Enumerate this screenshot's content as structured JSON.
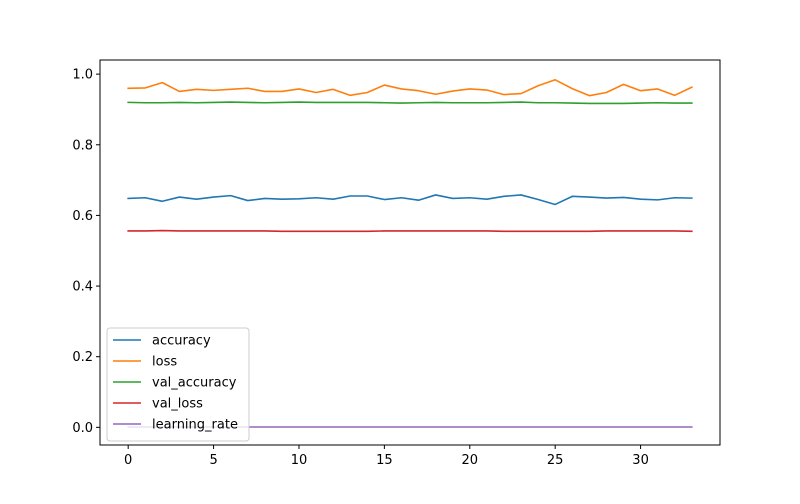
{
  "chart_data": {
    "type": "line",
    "title": "",
    "xlabel": "",
    "ylabel": "",
    "xlim": [
      -1.65,
      34.65
    ],
    "ylim": [
      -0.05,
      1.04
    ],
    "xticks": [
      0,
      5,
      10,
      15,
      20,
      25,
      30
    ],
    "yticks": [
      0.0,
      0.2,
      0.4,
      0.6,
      0.8,
      1.0
    ],
    "xtick_labels": [
      "0",
      "5",
      "10",
      "15",
      "20",
      "25",
      "30"
    ],
    "ytick_labels": [
      "0.0",
      "0.2",
      "0.4",
      "0.6",
      "0.8",
      "1.0"
    ],
    "grid": false,
    "legend_position": "lower-left",
    "x": [
      0,
      1,
      2,
      3,
      4,
      5,
      6,
      7,
      8,
      9,
      10,
      11,
      12,
      13,
      14,
      15,
      16,
      17,
      18,
      19,
      20,
      21,
      22,
      23,
      24,
      25,
      26,
      27,
      28,
      29,
      30,
      31,
      32,
      33
    ],
    "series": [
      {
        "name": "accuracy",
        "color": "#1f77b4",
        "values": [
          0.648,
          0.65,
          0.64,
          0.652,
          0.646,
          0.652,
          0.656,
          0.642,
          0.648,
          0.646,
          0.647,
          0.65,
          0.646,
          0.655,
          0.655,
          0.645,
          0.65,
          0.643,
          0.658,
          0.648,
          0.65,
          0.646,
          0.654,
          0.658,
          0.645,
          0.631,
          0.654,
          0.652,
          0.649,
          0.651,
          0.646,
          0.644,
          0.65,
          0.649
        ]
      },
      {
        "name": "loss",
        "color": "#ff7f0e",
        "values": [
          0.96,
          0.961,
          0.976,
          0.951,
          0.957,
          0.954,
          0.957,
          0.96,
          0.951,
          0.951,
          0.958,
          0.948,
          0.957,
          0.94,
          0.948,
          0.969,
          0.958,
          0.953,
          0.943,
          0.952,
          0.958,
          0.955,
          0.942,
          0.945,
          0.967,
          0.984,
          0.959,
          0.939,
          0.948,
          0.971,
          0.953,
          0.958,
          0.94,
          0.963
        ]
      },
      {
        "name": "val_accuracy",
        "color": "#2ca02c",
        "values": [
          0.92,
          0.919,
          0.919,
          0.92,
          0.919,
          0.92,
          0.921,
          0.92,
          0.919,
          0.92,
          0.921,
          0.92,
          0.92,
          0.92,
          0.92,
          0.919,
          0.918,
          0.919,
          0.92,
          0.919,
          0.919,
          0.919,
          0.92,
          0.921,
          0.919,
          0.919,
          0.918,
          0.917,
          0.917,
          0.917,
          0.918,
          0.919,
          0.918,
          0.918
        ]
      },
      {
        "name": "val_loss",
        "color": "#d62728",
        "values": [
          0.556,
          0.556,
          0.557,
          0.556,
          0.556,
          0.556,
          0.556,
          0.556,
          0.556,
          0.555,
          0.555,
          0.555,
          0.555,
          0.555,
          0.555,
          0.556,
          0.556,
          0.556,
          0.556,
          0.556,
          0.556,
          0.556,
          0.555,
          0.555,
          0.555,
          0.555,
          0.555,
          0.555,
          0.556,
          0.556,
          0.556,
          0.556,
          0.556,
          0.555
        ]
      },
      {
        "name": "learning_rate",
        "color": "#9467bd",
        "values": [
          0.001,
          0.001,
          0.001,
          0.001,
          0.001,
          0.001,
          0.001,
          0.001,
          0.001,
          0.001,
          0.001,
          0.001,
          0.001,
          0.001,
          0.001,
          0.001,
          0.001,
          0.001,
          0.001,
          0.001,
          0.001,
          0.001,
          0.001,
          0.001,
          0.001,
          0.001,
          0.001,
          0.001,
          0.001,
          0.001,
          0.001,
          0.001,
          0.001,
          0.001
        ]
      }
    ]
  }
}
